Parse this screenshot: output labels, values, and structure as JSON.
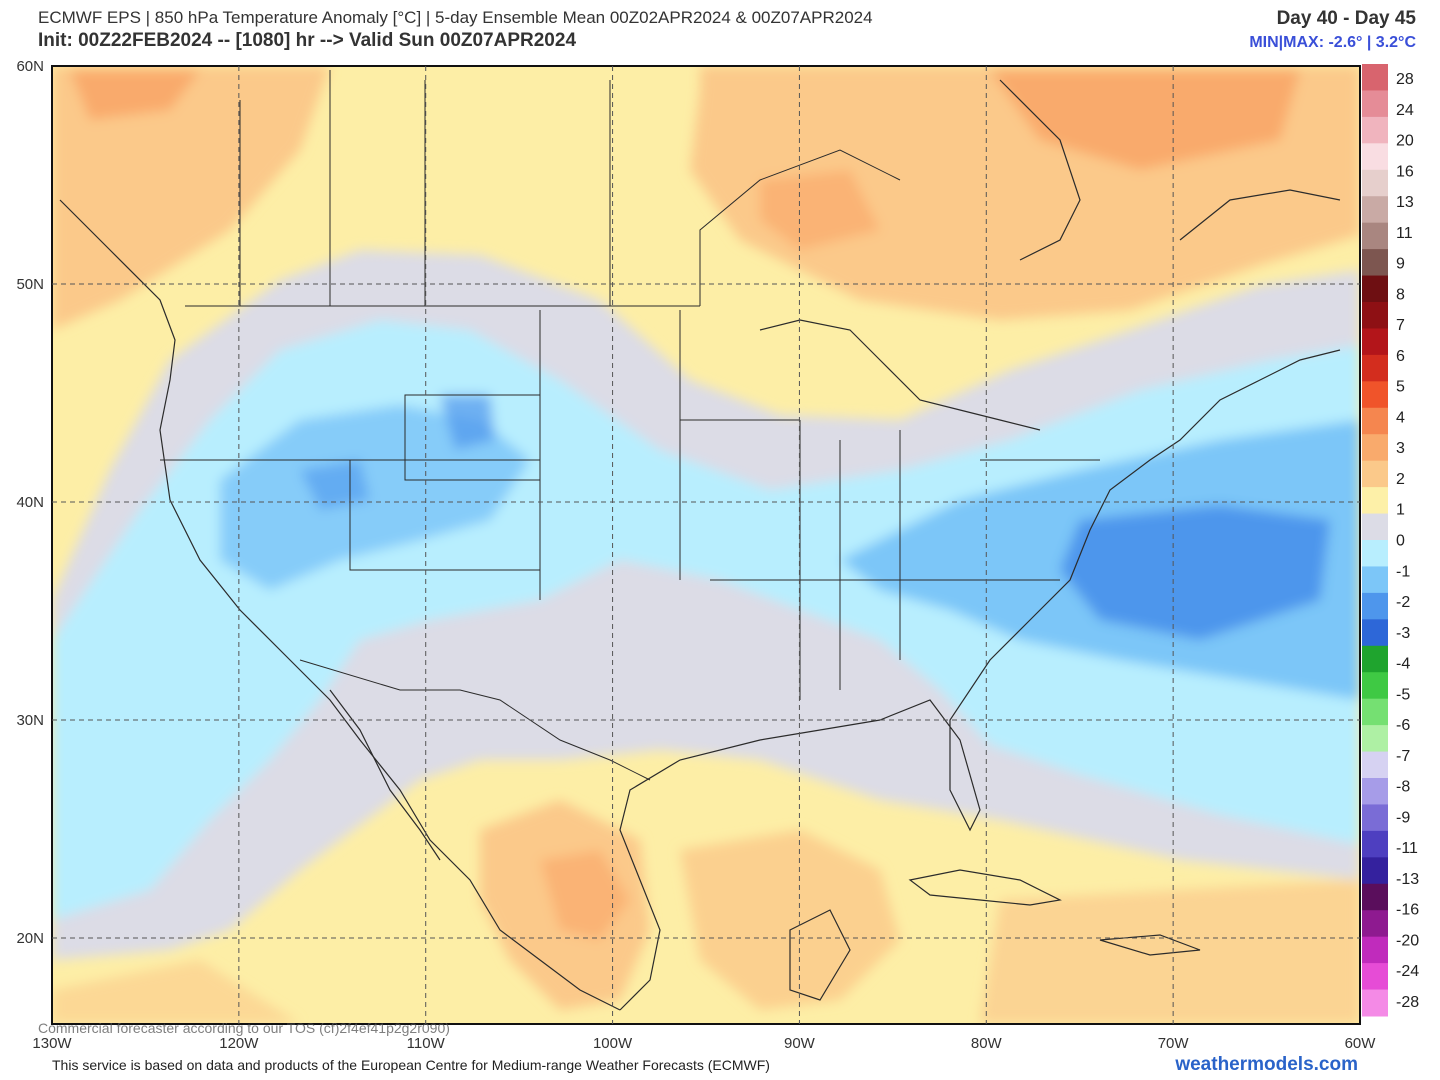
{
  "header": {
    "line1": "ECMWF EPS | 850 hPa Temperature Anomaly [°C] | 5-day Ensemble Mean 00Z02APR2024 & 00Z07APR2024",
    "line2": "Init: 00Z22FEB2024 -- [1080] hr --> Valid Sun 00Z07APR2024",
    "day_range": "Day 40 - Day 45",
    "minmax": "MIN|MAX: -2.6° | 3.2°C"
  },
  "map": {
    "extent": {
      "lon": [
        -130,
        -60
      ],
      "lat": [
        16,
        60
      ]
    },
    "lat_labels": [
      "60N",
      "50N",
      "40N",
      "30N",
      "20N"
    ],
    "lat_values": [
      60,
      50,
      40,
      30,
      20
    ],
    "lon_labels": [
      "130W",
      "120W",
      "110W",
      "100W",
      "90W",
      "80W",
      "70W",
      "60W"
    ],
    "lon_values": [
      -130,
      -120,
      -110,
      -100,
      -90,
      -80,
      -70,
      -60
    ],
    "gridlines": "dashed"
  },
  "colorbar": {
    "labels": [
      "28",
      "24",
      "20",
      "16",
      "13",
      "11",
      "9",
      "8",
      "7",
      "6",
      "5",
      "4",
      "3",
      "2",
      "1",
      "0",
      "-1",
      "-2",
      "-3",
      "-4",
      "-5",
      "-6",
      "-7",
      "-8",
      "-9",
      "-11",
      "-13",
      "-16",
      "-20",
      "-24",
      "-28"
    ],
    "colors": [
      "#d8646e",
      "#e58c97",
      "#f0b4be",
      "#f9dde2",
      "#e6cfcc",
      "#c9aaa5",
      "#a98680",
      "#7d5650",
      "#6e0f12",
      "#8e1014",
      "#b3151a",
      "#d32d1e",
      "#f0542a",
      "#f5864f",
      "#f9aa6c",
      "#fbc98a",
      "#fdf0a8",
      "#dcdce6",
      "#b8eefe",
      "#7cc6f8",
      "#4e96ec",
      "#2d67d8",
      "#1fa42e",
      "#3fc944",
      "#75e072",
      "#aef0a4",
      "#d6d2f2",
      "#a69ce8",
      "#7a6cd6",
      "#4e3fc0",
      "#34219e",
      "#5a0e5c",
      "#8e1a90",
      "#c02bbc",
      "#e64cd6",
      "#f48ae6"
    ]
  },
  "footer": {
    "watermark": "Commercial forecaster according to our TOS (cf)2f4ef41p2g2r090)",
    "note": "This service is based on data and products of the European Centre for Medium-range Weather Forecasts (ECMWF)",
    "brand": "weathermodels.com"
  }
}
